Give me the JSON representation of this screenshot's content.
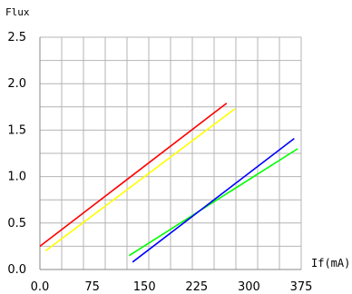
{
  "chart_data": {
    "type": "line",
    "title": "",
    "ylabel": "Flux",
    "xlabel": "If(mA)",
    "xlim": [
      0,
      375
    ],
    "ylim": [
      0,
      2.5
    ],
    "xticks": [
      "0.0",
      "75",
      "150",
      "225",
      "300",
      "375"
    ],
    "yticks": [
      "0.0",
      "0.5",
      "1.0",
      "1.5",
      "2.0",
      "2.5"
    ],
    "grid": true,
    "legend": "none",
    "series": [
      {
        "color": "#ff0000",
        "x": [
          0,
          268
        ],
        "y": [
          0.25,
          1.79
        ]
      },
      {
        "color": "#ffff00",
        "x": [
          8,
          280
        ],
        "y": [
          0.2,
          1.73
        ]
      },
      {
        "color": "#00ff00",
        "x": [
          128,
          370
        ],
        "y": [
          0.15,
          1.3
        ]
      },
      {
        "color": "#0000ff",
        "x": [
          133,
          365
        ],
        "y": [
          0.08,
          1.41
        ]
      }
    ]
  }
}
